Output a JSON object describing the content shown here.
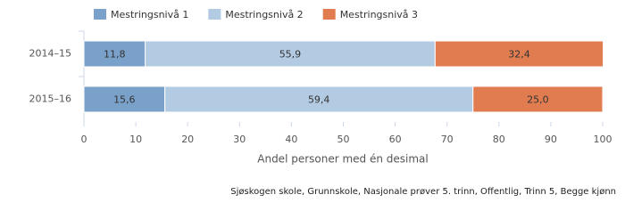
{
  "chart_data": {
    "type": "bar",
    "orientation": "horizontal",
    "stacked": true,
    "categories": [
      "2014–15",
      "2015–16"
    ],
    "series": [
      {
        "name": "Mestringsnivå 1",
        "color": "#7aa1c9",
        "values": [
          11.8,
          15.6
        ],
        "value_labels": [
          "11,8",
          "15,6"
        ]
      },
      {
        "name": "Mestringsnivå 2",
        "color": "#b3cbe2",
        "values": [
          55.9,
          59.4
        ],
        "value_labels": [
          "55,9",
          "59,4"
        ]
      },
      {
        "name": "Mestringsnivå 3",
        "color": "#e07c50",
        "values": [
          32.4,
          25.0
        ],
        "value_labels": [
          "32,4",
          "25,0"
        ]
      }
    ],
    "xlim": [
      0,
      100
    ],
    "xticks": [
      0,
      10,
      20,
      30,
      40,
      50,
      60,
      70,
      80,
      90,
      100
    ],
    "xlabel": "Andel personer med én desimal",
    "footnote": "Sjøskogen skole, Grunnskole, Nasjonale prøver 5. trinn, Offentlig, Trinn 5, Begge kjønn",
    "legend": "top"
  }
}
